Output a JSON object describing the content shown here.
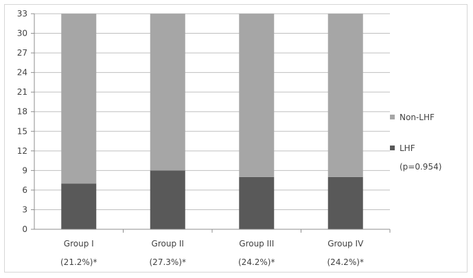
{
  "chart_data": {
    "type": "bar",
    "stacked": true,
    "categories": [
      "Group I",
      "Group II",
      "Group III",
      "Group IV"
    ],
    "category_sublabels": [
      "(21.2%)*",
      "(27.3%)*",
      "(24.2%)*",
      "(24.2%)*"
    ],
    "series": [
      {
        "name": "LHF",
        "values": [
          7,
          9,
          8,
          8
        ],
        "color": "#595959"
      },
      {
        "name": "Non-LHF",
        "values": [
          26,
          24,
          25,
          25
        ],
        "color": "#a6a6a6"
      }
    ],
    "yticks": [
      0,
      3,
      6,
      9,
      12,
      15,
      18,
      21,
      24,
      27,
      30,
      33
    ],
    "ylim": [
      0,
      33
    ],
    "grid": true,
    "legend_position": "right",
    "legend_note": "(p=0.954)",
    "title": "",
    "xlabel": "",
    "ylabel": ""
  }
}
